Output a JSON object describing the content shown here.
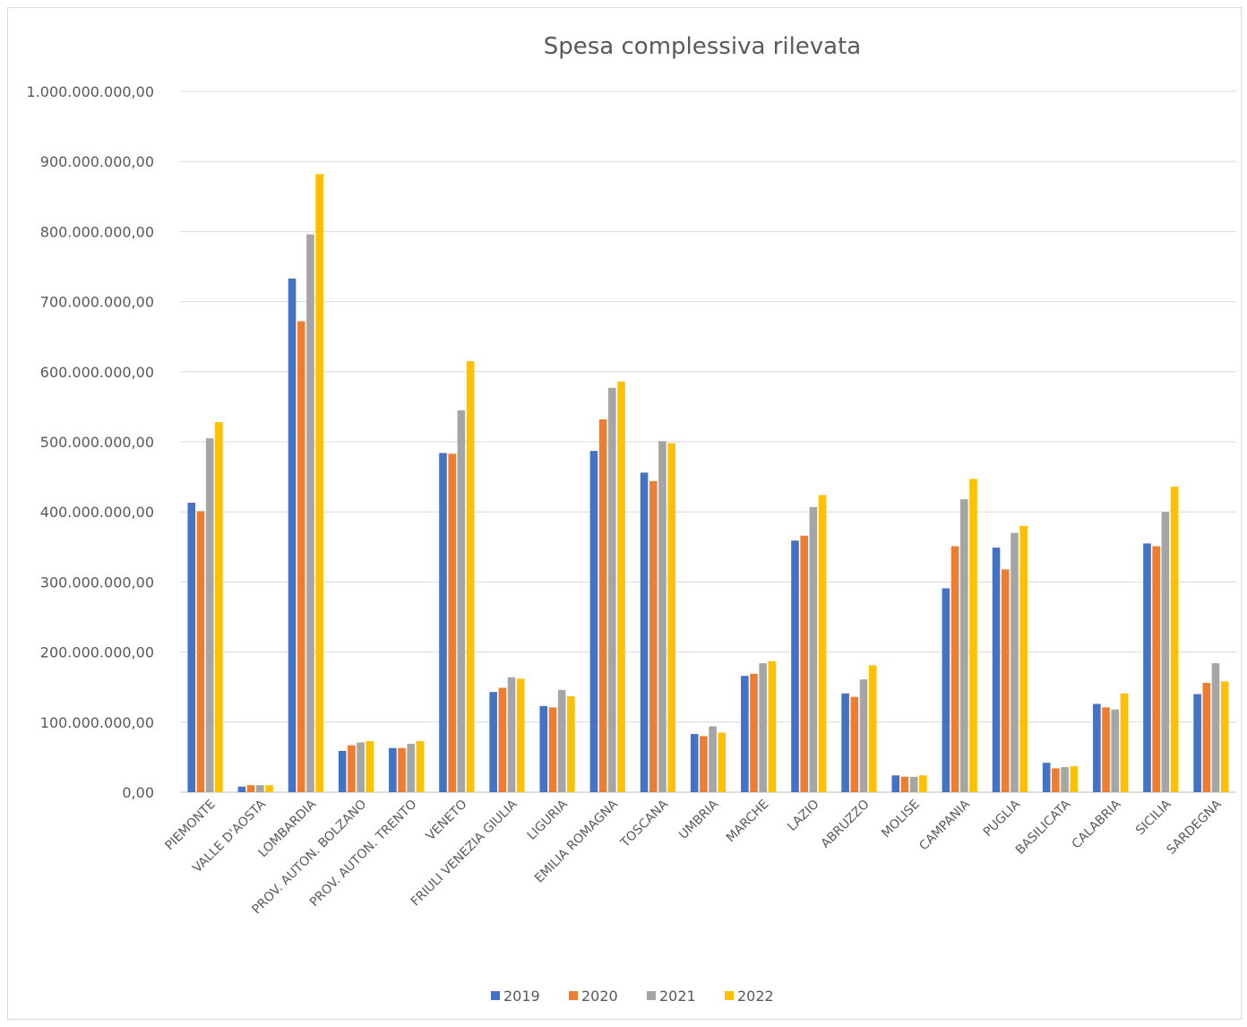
{
  "chart_data": {
    "type": "bar",
    "title": "Spesa complessiva rilevata",
    "xlabel": "",
    "ylabel": "",
    "ylim": [
      0,
      1000000000
    ],
    "y_ticks": [
      0,
      100000000,
      200000000,
      300000000,
      400000000,
      500000000,
      600000000,
      700000000,
      800000000,
      900000000,
      1000000000
    ],
    "y_tick_labels": [
      "0,00",
      "100.000.000,00",
      "200.000.000,00",
      "300.000.000,00",
      "400.000.000,00",
      "500.000.000,00",
      "600.000.000,00",
      "700.000.000,00",
      "800.000.000,00",
      "900.000.000,00",
      "1.000.000.000,00"
    ],
    "grid": true,
    "legend_position": "bottom",
    "categories": [
      "PIEMONTE",
      "VALLE D'AOSTA",
      "LOMBARDIA",
      "PROV. AUTON. BOLZANO",
      "PROV. AUTON. TRENTO",
      "VENETO",
      "FRIULI VENEZIA GIULIA",
      "LIGURIA",
      "EMILIA ROMAGNA",
      "TOSCANA",
      "UMBRIA",
      "MARCHE",
      "LAZIO",
      "ABRUZZO",
      "MOLISE",
      "CAMPANIA",
      "PUGLIA",
      "BASILICATA",
      "CALABRIA",
      "SICILIA",
      "SARDEGNA"
    ],
    "series": [
      {
        "name": "2019",
        "color": "#4472c4",
        "values": [
          413000000,
          8000000,
          733000000,
          59000000,
          63000000,
          484000000,
          143000000,
          123000000,
          487000000,
          456000000,
          83000000,
          166000000,
          359000000,
          141000000,
          24000000,
          291000000,
          349000000,
          42000000,
          126000000,
          355000000,
          140000000
        ]
      },
      {
        "name": "2020",
        "color": "#ed7d31",
        "values": [
          401000000,
          10000000,
          672000000,
          67000000,
          63000000,
          483000000,
          149000000,
          121000000,
          532000000,
          444000000,
          80000000,
          169000000,
          366000000,
          136000000,
          22000000,
          351000000,
          318000000,
          34000000,
          121000000,
          351000000,
          156000000
        ]
      },
      {
        "name": "2021",
        "color": "#a5a5a5",
        "values": [
          505000000,
          10000000,
          796000000,
          71000000,
          69000000,
          545000000,
          164000000,
          146000000,
          577000000,
          501000000,
          94000000,
          184000000,
          407000000,
          161000000,
          22000000,
          418000000,
          370000000,
          36000000,
          118000000,
          400000000,
          184000000
        ]
      },
      {
        "name": "2022",
        "color": "#ffc000",
        "values": [
          528000000,
          10000000,
          882000000,
          73000000,
          73000000,
          615000000,
          162000000,
          137000000,
          586000000,
          498000000,
          85000000,
          187000000,
          424000000,
          181000000,
          24000000,
          447000000,
          380000000,
          37000000,
          141000000,
          436000000,
          158000000
        ]
      }
    ]
  }
}
